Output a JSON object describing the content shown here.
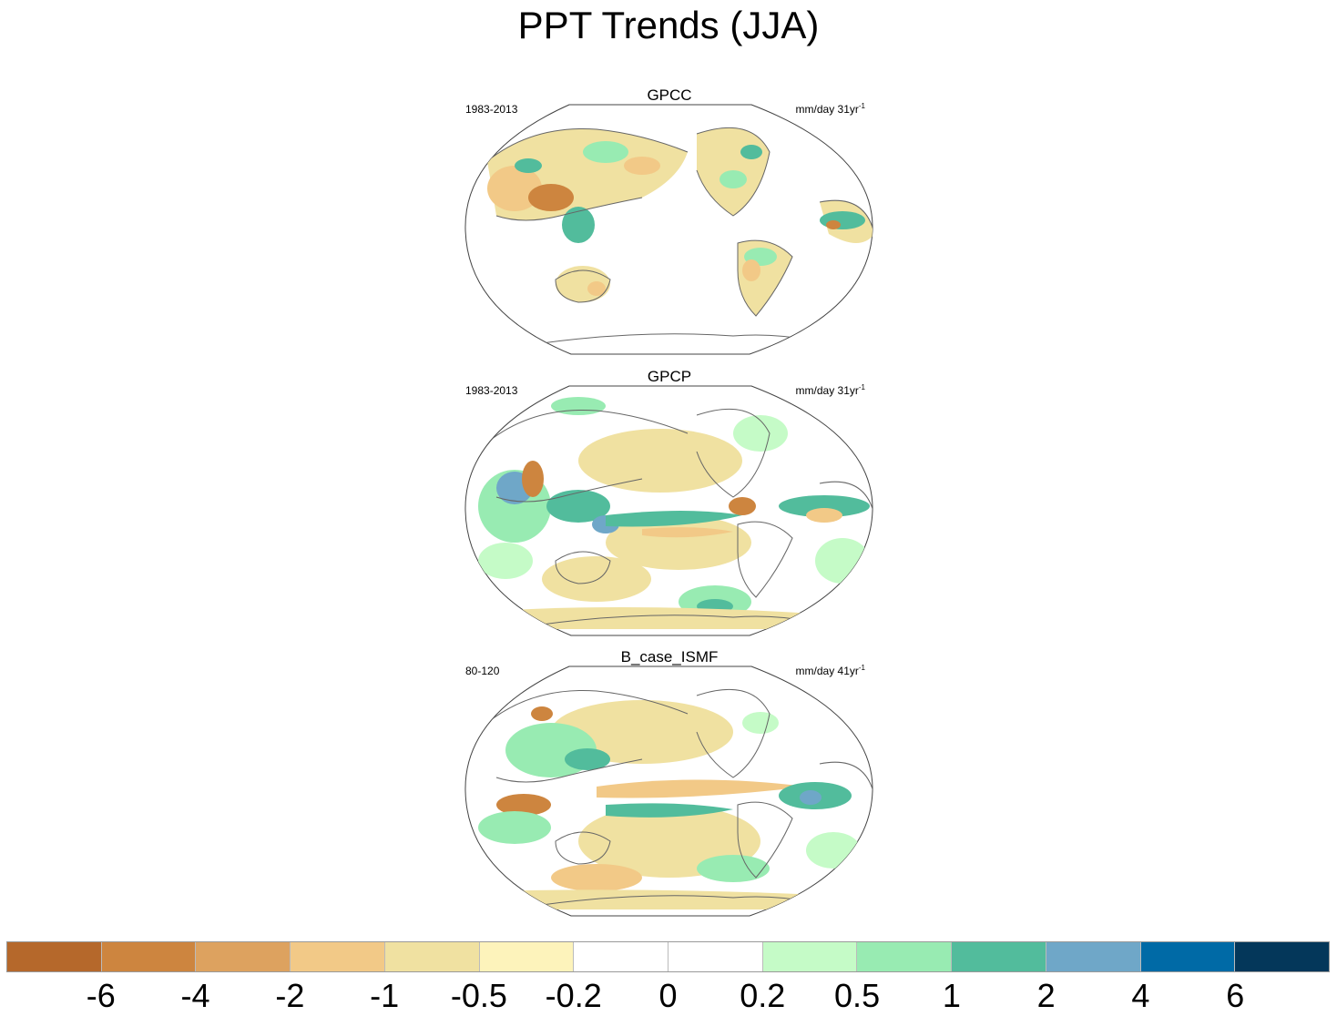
{
  "figure": {
    "title": "PPT Trends (JJA)"
  },
  "panels": [
    {
      "title": "GPCC",
      "period": "1983-2013",
      "units_base": "mm/day 31yr",
      "units_exp": "-1"
    },
    {
      "title": "GPCP",
      "period": "1983-2013",
      "units_base": "mm/day 31yr",
      "units_exp": "-1"
    },
    {
      "title": "B_case_ISMF",
      "period": "80-120",
      "units_base": "mm/day 41yr",
      "units_exp": "-1"
    }
  ],
  "colorbar": {
    "colors": [
      "#b5682b",
      "#cd853f",
      "#dda25f",
      "#f2c987",
      "#f0e1a1",
      "#fdf3bb",
      "#ffffff",
      "#ffffff",
      "#c5fbc7",
      "#98ebb2",
      "#52bc9c",
      "#6fa7c8",
      "#006aa6",
      "#04375a"
    ],
    "labels": [
      "-6",
      "-4",
      "-2",
      "-1",
      "-0.5",
      "-0.2",
      "0",
      "0.2",
      "0.5",
      "1",
      "2",
      "4",
      "6"
    ]
  },
  "map_colors": {
    "dry_strong": "#cd853f",
    "dry": "#f2c987",
    "dry_weak": "#f0e1a1",
    "wet_weak": "#c5fbc7",
    "wet": "#98ebb2",
    "wet_strong": "#52bc9c",
    "wet_very": "#6fa7c8",
    "coast": "#666666"
  }
}
